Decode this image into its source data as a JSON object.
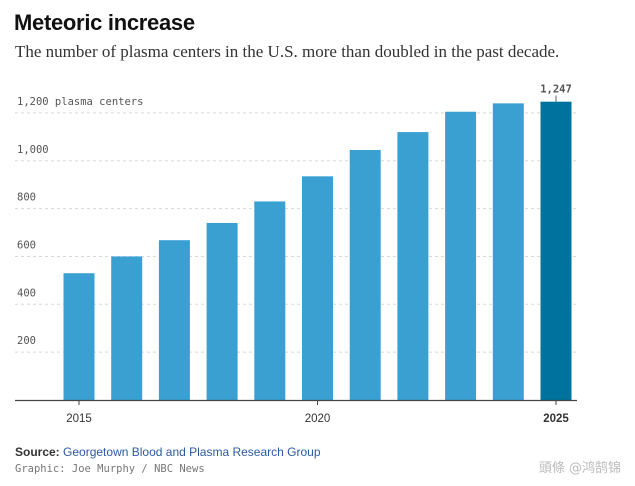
{
  "header": {
    "title": "Meteoric increase",
    "subtitle": "The number of plasma centers in the U.S. more than doubled in the past decade."
  },
  "footer": {
    "source_label": "Source:",
    "source_text": "Georgetown Blood and Plasma Research Group",
    "credit": "Graphic: Joe Murphy / NBC News",
    "watermark": "頭條 @鸿鹄锦"
  },
  "colors": {
    "bar": "#3aa0d2",
    "highlight_bar": "#00729e",
    "grid": "#d8d8d8",
    "axis": "#444444"
  },
  "chart_data": {
    "type": "bar",
    "x": [
      2015,
      2016,
      2017,
      2018,
      2019,
      2020,
      2021,
      2022,
      2023,
      2024,
      2025
    ],
    "values": [
      530,
      600,
      668,
      740,
      830,
      935,
      1045,
      1120,
      1205,
      1240,
      1247
    ],
    "highlight_index": 10,
    "data_labels": [
      {
        "index": 10,
        "text": "1,247"
      }
    ],
    "ylim": [
      0,
      1300
    ],
    "yticks": [
      {
        "value": 200,
        "label": "200"
      },
      {
        "value": 400,
        "label": "400"
      },
      {
        "value": 600,
        "label": "600"
      },
      {
        "value": 800,
        "label": "800"
      },
      {
        "value": 1000,
        "label": "1,000"
      },
      {
        "value": 1200,
        "label": "1,200 plasma centers"
      }
    ],
    "xticks": [
      {
        "value": 2015,
        "label": "2015",
        "bold": false
      },
      {
        "value": 2020,
        "label": "2020",
        "bold": false
      },
      {
        "value": 2025,
        "label": "2025",
        "bold": true
      }
    ],
    "grid": true
  }
}
